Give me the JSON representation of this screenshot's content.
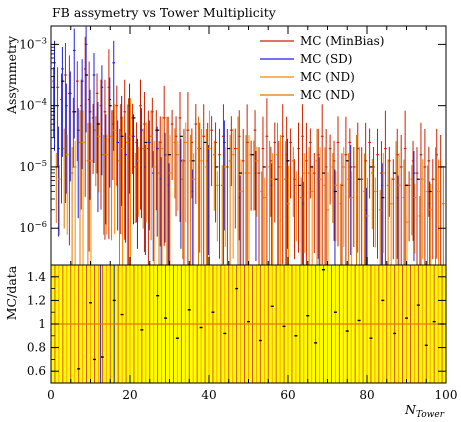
{
  "chart_data": {
    "type": "line",
    "title": "FB assymetry vs Tower Multiplicity",
    "xlabel_base": "N",
    "xlabel_sub": "Tower",
    "x_ticks": [
      "0",
      "20",
      "40",
      "60",
      "80",
      "100"
    ],
    "xlim": [
      0,
      100
    ],
    "colors": {
      "minbias": "#cc2200",
      "sd": "#2222dd",
      "nd": "#ff8800",
      "nd2": "#dd7700",
      "band": "#ffff00",
      "data": "#000000"
    },
    "top": {
      "ylabel": "Assymmetry",
      "scale": "log",
      "ylim_exp": [
        -6.6,
        -2.7
      ],
      "y_ticks": [
        {
          "exp": -3,
          "base": "10",
          "sup": "−3"
        },
        {
          "exp": -4,
          "base": "10",
          "sup": "−4"
        },
        {
          "exp": -5,
          "base": "10",
          "sup": "−5"
        },
        {
          "exp": -6,
          "base": "10",
          "sup": "−6"
        }
      ],
      "legend": [
        {
          "label": "MC (MinBias)",
          "color": "#cc2200"
        },
        {
          "label": "MC (SD)",
          "color": "#2222dd"
        },
        {
          "label": "MC (ND)",
          "color": "#ff8800"
        },
        {
          "label": "MC (ND)",
          "color": "#dd7700"
        }
      ],
      "series": [
        {
          "name": "MC (MinBias)",
          "x": [
            1,
            2,
            3,
            4,
            5,
            6,
            7,
            8,
            9,
            10,
            11,
            12,
            13,
            14,
            15,
            16,
            17,
            18,
            19,
            20,
            21,
            22,
            23,
            24,
            25,
            26,
            27,
            28,
            29,
            30,
            31,
            32,
            33,
            34,
            35,
            36,
            37,
            38,
            39,
            40,
            41,
            42,
            43,
            44,
            45,
            46,
            47,
            48,
            49,
            50,
            51,
            52,
            53,
            54,
            55,
            56,
            57,
            58,
            59,
            60,
            61,
            62,
            63,
            64,
            65,
            66,
            67,
            68,
            69,
            70,
            71,
            72,
            73,
            74,
            75,
            76,
            77,
            78,
            79,
            80,
            81,
            82,
            83,
            84,
            85,
            86,
            87,
            88,
            89,
            90,
            91,
            92,
            93,
            94,
            95,
            96,
            97,
            98,
            99
          ],
          "y_exp": [
            -3.6,
            -3.7,
            -3.9,
            -3.5,
            -3.8,
            -4.1,
            -3.6,
            -4.0,
            -3.4,
            -3.9,
            -4.2,
            -3.8,
            -4.0,
            -4.1,
            -3.7,
            -4.3,
            -4.0,
            -4.4,
            -4.1,
            -4.5,
            -4.2,
            -4.6,
            -4.0,
            -4.3,
            -4.7,
            -4.1,
            -4.4,
            -4.6,
            -4.2,
            -4.8,
            -4.3,
            -4.5,
            -4.2,
            -4.9,
            -4.4,
            -4.6,
            -4.3,
            -4.7,
            -4.5,
            -4.9,
            -4.4,
            -4.6,
            -4.8,
            -4.5,
            -5.0,
            -4.4,
            -4.7,
            -4.5,
            -4.9,
            -4.6,
            -4.8,
            -4.4,
            -5.1,
            -4.7,
            -4.5,
            -4.9,
            -4.6,
            -5.0,
            -4.5,
            -4.8,
            -4.6,
            -5.2,
            -4.7,
            -4.5,
            -4.9,
            -4.6,
            -5.1,
            -4.8,
            -4.5,
            -5.0,
            -4.7,
            -4.9,
            -4.6,
            -5.3,
            -4.8,
            -4.6,
            -5.0,
            -4.7,
            -5.2,
            -4.9,
            -4.6,
            -5.0,
            -4.8,
            -5.1,
            -4.7,
            -4.9,
            -5.2,
            -4.8,
            -5.0,
            -4.7,
            -5.3,
            -4.9,
            -5.1,
            -4.8,
            -5.0,
            -4.9,
            -5.2,
            -4.8,
            -5.0
          ]
        },
        {
          "name": "MC (SD)",
          "x": [
            1,
            2,
            3,
            4,
            5,
            6,
            7,
            8,
            9,
            10,
            11,
            12,
            13,
            14,
            15,
            16,
            17,
            18,
            19,
            20,
            21,
            22,
            23,
            24,
            25,
            26,
            27,
            28,
            29,
            30,
            33,
            36,
            40,
            44,
            48,
            52,
            56,
            60,
            64,
            68,
            72,
            76,
            80,
            84,
            88,
            92,
            96
          ],
          "y_exp": [
            -3.3,
            -4.7,
            -3.4,
            -4.0,
            -3.8,
            -3.1,
            -4.4,
            -3.6,
            -3.0,
            -4.1,
            -3.5,
            -4.3,
            -3.7,
            -4.5,
            -3.9,
            -3.3,
            -4.6,
            -4.2,
            -4.8,
            -4.0,
            -4.5,
            -4.9,
            -4.4,
            -5.0,
            -4.6,
            -5.1,
            -4.7,
            -5.2,
            -4.8,
            -5.3,
            -4.9,
            -5.4,
            -5.0,
            -4.6,
            -5.5,
            -5.1,
            -5.3,
            -4.9,
            -5.6,
            -5.2,
            -5.4,
            -5.0,
            -5.7,
            -5.3,
            -5.5,
            -5.1,
            -5.6
          ]
        },
        {
          "name": "MC (ND)",
          "x": [
            2,
            4,
            6,
            8,
            10,
            12,
            14,
            16,
            18,
            20,
            22,
            24,
            26,
            28,
            30,
            32,
            34,
            36,
            38,
            40,
            42,
            44,
            46,
            48,
            50,
            52,
            54,
            56,
            58,
            60,
            62,
            64,
            66,
            68,
            70,
            72,
            74,
            76,
            78,
            80,
            82,
            84,
            86,
            88,
            90,
            92,
            94,
            96,
            98
          ],
          "y_exp": [
            -5.2,
            -4.8,
            -5.0,
            -4.6,
            -4.9,
            -4.5,
            -4.8,
            -4.4,
            -4.7,
            -4.5,
            -4.9,
            -4.6,
            -5.0,
            -4.7,
            -5.1,
            -4.8,
            -4.6,
            -5.2,
            -4.9,
            -4.7,
            -5.3,
            -5.0,
            -4.8,
            -5.4,
            -5.1,
            -4.9,
            -5.5,
            -5.2,
            -5.0,
            -5.6,
            -5.3,
            -5.1,
            -5.4,
            -5.2,
            -5.7,
            -5.3,
            -5.0,
            -5.5,
            -5.2,
            -5.8,
            -5.4,
            -5.1,
            -5.6,
            -5.3,
            -5.9,
            -5.5,
            -5.2,
            -5.7,
            -5.4
          ]
        },
        {
          "name": "MC (ND)",
          "x": [
            1,
            3,
            5,
            7,
            9,
            11,
            13,
            15,
            17,
            19,
            21,
            23,
            25,
            27,
            29,
            31,
            33,
            35,
            37,
            39,
            41,
            43,
            45,
            47,
            49,
            51,
            53,
            55,
            57,
            59,
            61,
            63,
            65,
            67,
            69,
            71,
            73,
            75,
            77,
            79,
            81,
            83,
            85,
            87,
            89,
            91,
            93,
            95,
            97,
            99
          ],
          "y_exp": [
            -5.0,
            -4.7,
            -5.1,
            -4.6,
            -4.9,
            -4.4,
            -4.8,
            -4.5,
            -4.9,
            -4.6,
            -5.0,
            -4.7,
            -4.5,
            -5.1,
            -4.8,
            -4.6,
            -5.2,
            -4.9,
            -4.7,
            -5.0,
            -4.8,
            -5.3,
            -4.9,
            -4.7,
            -5.1,
            -4.8,
            -5.4,
            -5.0,
            -4.8,
            -5.2,
            -4.9,
            -5.5,
            -5.1,
            -4.9,
            -5.3,
            -5.0,
            -5.6,
            -5.2,
            -5.0,
            -5.4,
            -5.1,
            -5.7,
            -5.3,
            -5.1,
            -5.5,
            -5.2,
            -5.8,
            -5.4,
            -5.2,
            -5.6
          ]
        }
      ],
      "data": {
        "x": [
          3,
          6,
          9,
          12,
          15,
          18,
          21,
          24,
          27,
          30,
          33,
          36,
          39,
          42,
          45,
          48,
          51,
          54,
          57,
          60,
          63,
          66,
          69,
          72,
          75,
          78,
          81,
          84,
          87,
          90,
          93,
          96,
          99
        ],
        "y_exp": [
          -3.6,
          -4.1,
          -3.5,
          -4.3,
          -4.0,
          -4.5,
          -4.2,
          -4.6,
          -4.4,
          -4.8,
          -4.5,
          -4.9,
          -4.6,
          -5.0,
          -4.7,
          -5.1,
          -4.8,
          -5.0,
          -5.2,
          -4.9,
          -5.3,
          -5.0,
          -5.1,
          -5.4,
          -4.9,
          -5.2,
          -5.0,
          -5.5,
          -5.1,
          -5.3,
          -5.2,
          -5.4,
          -5.0
        ]
      }
    },
    "ratio": {
      "ylabel": "MC/data",
      "ylim": [
        0.5,
        1.5
      ],
      "y_ticks": [
        "0.6",
        "0.8",
        "1",
        "1.2",
        "1.4"
      ],
      "y_tick_values": [
        0.6,
        0.8,
        1.0,
        1.2,
        1.4
      ],
      "reference": 1.0,
      "band": [
        0.5,
        1.5
      ],
      "points": {
        "x": [
          7,
          10,
          11,
          13,
          16,
          18,
          23,
          27,
          29,
          32,
          35,
          38,
          41,
          44,
          47,
          50,
          53,
          56,
          59,
          62,
          65,
          67,
          69,
          72,
          75,
          78,
          81,
          84,
          87,
          90,
          93,
          95,
          97,
          99
        ],
        "y": [
          0.62,
          1.18,
          0.7,
          0.72,
          1.2,
          1.08,
          0.95,
          1.24,
          1.05,
          0.88,
          1.12,
          0.97,
          1.1,
          0.92,
          1.3,
          1.02,
          0.86,
          1.15,
          0.98,
          0.9,
          1.07,
          0.84,
          1.46,
          1.1,
          0.94,
          1.03,
          0.88,
          1.2,
          0.92,
          1.05,
          1.16,
          0.82,
          1.02,
          1.0
        ]
      }
    }
  }
}
